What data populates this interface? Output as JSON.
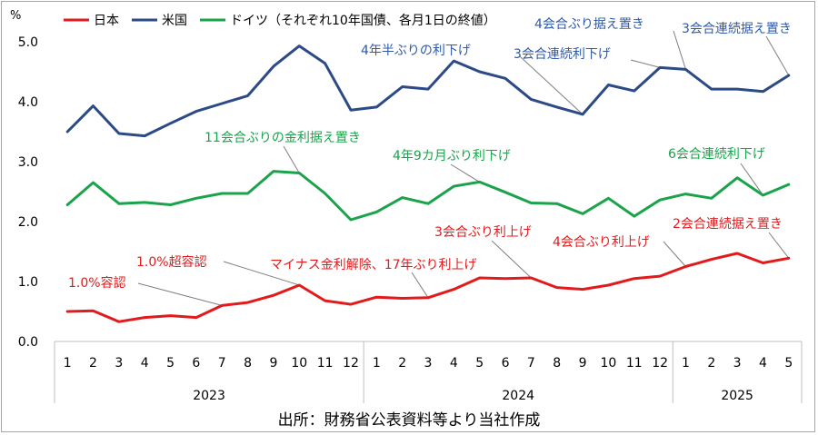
{
  "chart_data": {
    "type": "line",
    "unit_label": "%",
    "x": [
      "1",
      "2",
      "3",
      "4",
      "5",
      "6",
      "7",
      "8",
      "9",
      "10",
      "11",
      "12",
      "1",
      "2",
      "3",
      "4",
      "5",
      "6",
      "7",
      "8",
      "9",
      "10",
      "11",
      "12",
      "1",
      "2",
      "3",
      "4",
      "5"
    ],
    "year_groups": [
      {
        "label": "2023",
        "span": 12
      },
      {
        "label": "2024",
        "span": 12
      },
      {
        "label": "2025",
        "span": 5
      }
    ],
    "ylim": [
      0,
      5
    ],
    "yticks": [
      "0.0",
      "1.0",
      "2.0",
      "3.0",
      "4.0",
      "5.0"
    ],
    "legend_note": "（それぞれ10年国債、各月1日の終値）",
    "series": [
      {
        "name": "日本",
        "color": "#e31a1c",
        "values": [
          0.5,
          0.51,
          0.33,
          0.4,
          0.43,
          0.4,
          0.6,
          0.65,
          0.77,
          0.94,
          0.68,
          0.62,
          0.74,
          0.72,
          0.73,
          0.87,
          1.06,
          1.05,
          1.06,
          0.9,
          0.87,
          0.94,
          1.05,
          1.09,
          1.25,
          1.37,
          1.47,
          1.31,
          1.39
        ]
      },
      {
        "name": "米国",
        "color": "#2b4a86",
        "values": [
          3.5,
          3.93,
          3.47,
          3.43,
          3.64,
          3.84,
          3.97,
          4.1,
          4.59,
          4.93,
          4.64,
          3.86,
          3.91,
          4.25,
          4.21,
          4.68,
          4.5,
          4.39,
          4.04,
          3.91,
          3.79,
          4.28,
          4.18,
          4.57,
          4.54,
          4.21,
          4.21,
          4.17,
          4.44
        ]
      },
      {
        "name": "ドイツ",
        "color": "#1aa34a",
        "values": [
          2.28,
          2.65,
          2.3,
          2.32,
          2.28,
          2.39,
          2.47,
          2.47,
          2.84,
          2.81,
          2.47,
          2.03,
          2.16,
          2.4,
          2.3,
          2.59,
          2.66,
          2.49,
          2.31,
          2.3,
          2.13,
          2.39,
          2.09,
          2.36,
          2.46,
          2.39,
          2.73,
          2.44,
          2.62
        ]
      }
    ],
    "annotations": [
      {
        "text": "1.0%容認",
        "series": 0,
        "point": 6,
        "color": "#e31a1c"
      },
      {
        "text": "1.0%超容認",
        "series": 0,
        "point": 9,
        "color": "#e31a1c"
      },
      {
        "text": "マイナス金利解除、17年ぶり利上げ",
        "series": 0,
        "point": 14,
        "color": "#e31a1c"
      },
      {
        "text": "3会合ぶり利上げ",
        "series": 0,
        "point": 18,
        "color": "#e31a1c"
      },
      {
        "text": "4会合ぶり利上げ",
        "series": 0,
        "point": 24,
        "color": "#e31a1c"
      },
      {
        "text": "2会合連続据え置き",
        "series": 0,
        "point": 28,
        "color": "#e31a1c"
      },
      {
        "text": "11会合ぶりの金利据え置き",
        "series": 2,
        "point": 9,
        "color": "#1aa34a"
      },
      {
        "text": "4年9カ月ぶり利下げ",
        "series": 2,
        "point": 16,
        "color": "#1aa34a"
      },
      {
        "text": "6会合連続利下げ",
        "series": 2,
        "point": 27,
        "color": "#1aa34a"
      },
      {
        "text": "4年半ぶりの利下げ",
        "series": 1,
        "point": 20,
        "color": "#2e5aa8"
      },
      {
        "text": "3会合連続利下げ",
        "series": 1,
        "point": 23,
        "color": "#2e5aa8"
      },
      {
        "text": "4会合ぶり据え置き",
        "series": 1,
        "point": 24,
        "color": "#2e5aa8"
      },
      {
        "text": "3会合連続据え置き",
        "series": 1,
        "point": 28,
        "color": "#2e5aa8"
      }
    ]
  },
  "source_note": "出所：財務省公表資料等より当社作成"
}
